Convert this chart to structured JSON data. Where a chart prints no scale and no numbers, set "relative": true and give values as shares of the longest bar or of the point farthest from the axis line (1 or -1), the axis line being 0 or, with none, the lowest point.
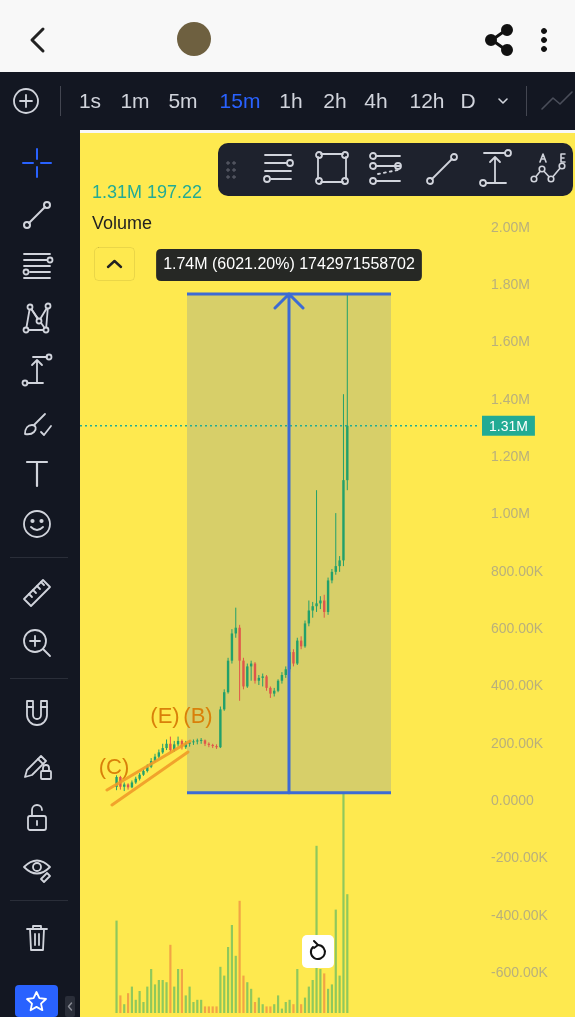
{
  "chart_data": [
    {
      "type": "candlestick",
      "subtitle": "1.31M 197.22",
      "categories": [
        null,
        null,
        null,
        null,
        null,
        null,
        null,
        null,
        null,
        null,
        null,
        null,
        null,
        null,
        null,
        null,
        null,
        null,
        null,
        null,
        null,
        null,
        null,
        null,
        null,
        null,
        null,
        null,
        null,
        null,
        null,
        null,
        null,
        null,
        null,
        null,
        null,
        null,
        null,
        null,
        null,
        null,
        null,
        null,
        null,
        null,
        null,
        null,
        null,
        null,
        null,
        null,
        null,
        null,
        null,
        null,
        null,
        null,
        null,
        null,
        null,
        null,
        null,
        null,
        null,
        null,
        null,
        null,
        null,
        null,
        null,
        null,
        null,
        null,
        null,
        null,
        null,
        null,
        null,
        null,
        null,
        null,
        null,
        null,
        null,
        null,
        null,
        null,
        null,
        null,
        null,
        null,
        null,
        null,
        null,
        null,
        null,
        null,
        null,
        null,
        null,
        null,
        null,
        null
      ],
      "ohlc": [
        null,
        null,
        null,
        null,
        null,
        null,
        null,
        null,
        null,
        [
          49000,
          90000,
          38000,
          84000
        ],
        [
          84000,
          88000,
          40000,
          50000
        ],
        [
          50000,
          65000,
          35000,
          58000
        ],
        [
          58000,
          62000,
          40000,
          48000
        ],
        [
          48000,
          72000,
          45000,
          65000
        ],
        [
          65000,
          85000,
          60000,
          78000
        ],
        [
          78000,
          98000,
          72000,
          92000
        ],
        [
          92000,
          112000,
          88000,
          105000
        ],
        [
          105000,
          128000,
          100000,
          120000
        ],
        [
          120000,
          150000,
          115000,
          140000
        ],
        [
          140000,
          165000,
          135000,
          155000
        ],
        [
          155000,
          180000,
          150000,
          170000
        ],
        [
          170000,
          200000,
          165000,
          185000
        ],
        [
          185000,
          215000,
          178000,
          200000
        ],
        [
          200000,
          225000,
          170000,
          178000
        ],
        [
          178000,
          210000,
          172000,
          198000
        ],
        [
          198000,
          225000,
          190000,
          210000
        ],
        [
          210000,
          215000,
          180000,
          188000
        ],
        [
          188000,
          210000,
          182000,
          200000
        ],
        [
          200000,
          212000,
          190000,
          205000
        ],
        [
          205000,
          215000,
          196000,
          208000
        ],
        [
          208000,
          218000,
          198000,
          210000
        ],
        [
          210000,
          220000,
          200000,
          212000
        ],
        [
          212000,
          215000,
          192000,
          200000
        ],
        [
          200000,
          205000,
          188000,
          196000
        ],
        [
          196000,
          200000,
          185000,
          192000
        ],
        [
          192000,
          198000,
          182000,
          188000
        ],
        [
          188000,
          330000,
          185000,
          320000
        ],
        [
          320000,
          390000,
          315000,
          380000
        ],
        [
          380000,
          500000,
          375000,
          490000
        ],
        [
          490000,
          600000,
          480000,
          585000
        ],
        [
          585000,
          675000,
          570000,
          605000
        ],
        [
          605000,
          615000,
          350000,
          490000
        ],
        [
          490000,
          500000,
          390000,
          400000
        ],
        [
          400000,
          480000,
          395000,
          470000
        ],
        [
          470000,
          490000,
          420000,
          480000
        ],
        [
          480000,
          485000,
          410000,
          420000
        ],
        [
          420000,
          440000,
          405000,
          430000
        ],
        [
          430000,
          445000,
          400000,
          435000
        ],
        [
          435000,
          440000,
          385000,
          395000
        ],
        [
          395000,
          400000,
          360000,
          375000
        ],
        [
          375000,
          395000,
          365000,
          385000
        ],
        [
          385000,
          425000,
          380000,
          420000
        ],
        [
          420000,
          450000,
          410000,
          440000
        ],
        [
          440000,
          470000,
          430000,
          460000
        ],
        [
          460000,
          530000,
          450000,
          520000
        ],
        [
          520000,
          530000,
          470000,
          480000
        ],
        [
          480000,
          570000,
          475000,
          560000
        ],
        [
          560000,
          575000,
          530000,
          540000
        ],
        [
          540000,
          630000,
          535000,
          620000
        ],
        [
          620000,
          700000,
          610000,
          665000
        ],
        [
          665000,
          695000,
          640000,
          680000
        ],
        [
          680000,
          1085000,
          660000,
          690000
        ],
        [
          690000,
          715000,
          670000,
          700000
        ],
        [
          700000,
          720000,
          640000,
          660000
        ],
        [
          660000,
          780000,
          650000,
          770000
        ],
        [
          770000,
          810000,
          760000,
          800000
        ],
        [
          800000,
          1005000,
          790000,
          820000
        ],
        [
          820000,
          855000,
          800000,
          840000
        ],
        [
          840000,
          1420000,
          820000,
          1120000
        ],
        [
          1120000,
          1770000,
          1085000,
          1310000
        ],
        null,
        null,
        null,
        null,
        null,
        null,
        null,
        null,
        null,
        null,
        null,
        null,
        null,
        null,
        null,
        null,
        null,
        null,
        null,
        null,
        null,
        null,
        null,
        null,
        null,
        null,
        null,
        null,
        null,
        null,
        null,
        null,
        null,
        null
      ],
      "colors": [
        null,
        null,
        null,
        null,
        null,
        null,
        null,
        null,
        null,
        "#22a06b",
        "#e0564b",
        "#22a06b",
        "#e0564b",
        "#22a06b",
        "#22a06b",
        "#22a06b",
        "#22a06b",
        "#22a06b",
        "#22a06b",
        "#22a06b",
        "#22a06b",
        "#22a06b",
        "#22a06b",
        "#e0564b",
        "#22a06b",
        "#22a06b",
        "#e0564b",
        "#22a06b",
        "#22a06b",
        "#22a06b",
        "#22a06b",
        "#22a06b",
        "#e0564b",
        "#e0564b",
        "#e0564b",
        "#e0564b",
        "#22a06b",
        "#22a06b",
        "#22a06b",
        "#22a06b",
        "#22a06b",
        "#e0564b",
        "#e0564b",
        "#22a06b",
        "#22a06b",
        "#e0564b",
        "#22a06b",
        "#22a06b",
        "#e0564b",
        "#e0564b",
        "#22a06b",
        "#22a06b",
        "#22a06b",
        "#22a06b",
        "#22a06b",
        "#e0564b",
        "#22a06b",
        "#e0564b",
        "#22a06b",
        "#22a06b",
        "#22a06b",
        "#22a06b",
        "#22a06b",
        "#e0564b",
        "#22a06b",
        "#22a06b",
        "#22a06b",
        "#22a06b",
        "#22a06b",
        "#22a06b",
        null,
        null,
        null,
        null,
        null,
        null,
        null,
        null,
        null,
        null,
        null,
        null,
        null,
        null,
        null,
        null,
        null,
        null,
        null,
        null,
        null,
        null,
        null,
        null,
        null,
        null,
        null,
        null,
        null,
        null,
        null,
        null,
        null,
        null
      ],
      "ylim": [
        -600000,
        2000000
      ],
      "yticks": [
        {
          "value": 2000000,
          "label": "2.00M"
        },
        {
          "value": 1800000,
          "label": "1.80M"
        },
        {
          "value": 1600000,
          "label": "1.60M"
        },
        {
          "value": 1400000,
          "label": "1.40M"
        },
        {
          "value": 1200000,
          "label": "1.20M"
        },
        {
          "value": 1000000,
          "label": "1.00M"
        },
        {
          "value": 800000,
          "label": "800.00K"
        },
        {
          "value": 600000,
          "label": "600.00K"
        },
        {
          "value": 400000,
          "label": "400.00K"
        },
        {
          "value": 200000,
          "label": "200.00K"
        },
        {
          "value": 0,
          "label": "0.0000"
        },
        {
          "value": -200000,
          "label": "-200.00K"
        },
        {
          "value": -400000,
          "label": "-400.00K"
        },
        {
          "value": -600000,
          "label": "-600.00K"
        }
      ],
      "ref_lines": [
        {
          "axis": "y",
          "value": 1310000,
          "label": "1.31M",
          "color": "#22ab94",
          "line_style": "dotted"
        },
        {
          "axis": "y",
          "value": 1770000,
          "color": "#3d6bd4"
        },
        {
          "axis": "y",
          "value": 29000,
          "color": "#3d6bd4"
        }
      ],
      "bands": [
        {
          "axis": "y",
          "from": 29000,
          "to": 1770000,
          "label": "1.74M (6021.20%) 1742971558702",
          "color": "#3d6bd4"
        }
      ],
      "annotations": [
        "1s",
        "1m",
        "5m",
        "15m",
        "1h",
        "2h",
        "4h",
        "12h",
        "D",
        "Volume",
        "(C)",
        "(E)",
        "(B)"
      ]
    },
    {
      "type": "bar",
      "relative": true,
      "categories": [
        null,
        null,
        null,
        null,
        null,
        null,
        null,
        null,
        null,
        null,
        null,
        null,
        null,
        null,
        null,
        null,
        null,
        null,
        null,
        null,
        null,
        null,
        null,
        null,
        null,
        null,
        null,
        null,
        null,
        null,
        null,
        null,
        null,
        null,
        null,
        null,
        null,
        null,
        null,
        null,
        null,
        null,
        null,
        null,
        null,
        null,
        null,
        null,
        null,
        null,
        null,
        null,
        null,
        null,
        null,
        null,
        null,
        null,
        null,
        null,
        null,
        null,
        null,
        null,
        null,
        null,
        null,
        null,
        null,
        null,
        null,
        null,
        null,
        null,
        null,
        null,
        null,
        null,
        null,
        null,
        null,
        null,
        null,
        null,
        null,
        null,
        null,
        null,
        null,
        null,
        null,
        null,
        null,
        null,
        null,
        null,
        null,
        null,
        null,
        null,
        null,
        null,
        null,
        null
      ],
      "values": [
        null,
        null,
        null,
        null,
        null,
        null,
        null,
        null,
        null,
        0.42,
        0.08,
        0.04,
        0.09,
        0.12,
        0.06,
        0.1,
        0.05,
        0.12,
        0.2,
        0.13,
        0.15,
        0.15,
        0.14,
        0.31,
        0.12,
        0.2,
        0.2,
        0.08,
        0.12,
        0.05,
        0.06,
        0.06,
        0.03,
        0.03,
        0.03,
        0.03,
        0.21,
        0.17,
        0.3,
        0.4,
        0.26,
        0.51,
        0.17,
        0.14,
        0.11,
        0.05,
        0.07,
        0.04,
        0.03,
        0.03,
        0.04,
        0.08,
        0.02,
        0.05,
        0.06,
        0.04,
        0.2,
        0.04,
        0.07,
        0.12,
        0.15,
        0.76,
        0.2,
        0.18,
        0.11,
        0.13,
        0.47,
        0.17,
        1,
        0.54,
        null,
        null,
        null,
        null,
        null,
        null,
        null,
        null,
        null,
        null,
        null,
        null,
        null,
        null,
        null,
        null,
        null,
        null,
        null,
        null,
        null,
        null,
        null,
        null,
        null,
        null,
        null,
        null,
        null,
        null,
        null,
        null,
        null,
        null
      ],
      "colors": [
        null,
        null,
        null,
        null,
        null,
        null,
        null,
        null,
        null,
        "#8fc85c",
        "#f2a445",
        "#8fc85c",
        "#f2a445",
        "#8fc85c",
        "#8fc85c",
        "#8fc85c",
        "#8fc85c",
        "#8fc85c",
        "#8fc85c",
        "#8fc85c",
        "#8fc85c",
        "#8fc85c",
        "#8fc85c",
        "#f2a445",
        "#8fc85c",
        "#8fc85c",
        "#f2a445",
        "#8fc85c",
        "#8fc85c",
        "#8fc85c",
        "#8fc85c",
        "#8fc85c",
        "#f2a445",
        "#f2a445",
        "#f2a445",
        "#f2a445",
        "#8fc85c",
        "#8fc85c",
        "#8fc85c",
        "#8fc85c",
        "#8fc85c",
        "#f2a445",
        "#f2a445",
        "#8fc85c",
        "#8fc85c",
        "#f2a445",
        "#8fc85c",
        "#8fc85c",
        "#f2a445",
        "#f2a445",
        "#8fc85c",
        "#8fc85c",
        "#8fc85c",
        "#8fc85c",
        "#8fc85c",
        "#f2a445",
        "#8fc85c",
        "#f2a445",
        "#8fc85c",
        "#8fc85c",
        "#8fc85c",
        "#8fc85c",
        "#8fc85c",
        "#f2a445",
        "#8fc85c",
        "#8fc85c",
        "#8fc85c",
        "#8fc85c",
        "#8fc85c",
        "#8fc85c",
        null,
        null,
        null,
        null,
        null,
        null,
        null,
        null,
        null,
        null,
        null,
        null,
        null,
        null,
        null,
        null,
        null,
        null,
        null,
        null,
        null,
        null,
        null,
        null,
        null,
        null,
        null,
        null,
        null,
        null,
        null,
        null,
        null,
        null
      ]
    }
  ]
}
